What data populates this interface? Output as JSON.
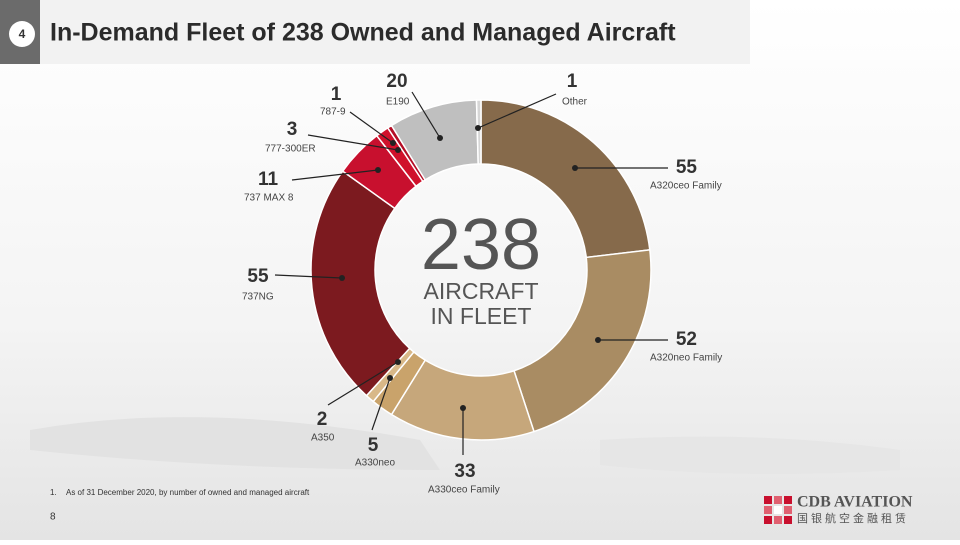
{
  "page_number": "4",
  "title": "In-Demand Fleet of 238 Owned and Managed Aircraft",
  "chart_data": {
    "type": "donut",
    "categories": [
      "A320ceo Family",
      "A320neo Family",
      "A330ceo Family",
      "A330neo",
      "A350",
      "737NG",
      "737 MAX 8",
      "777-300ER",
      "787-9",
      "E190",
      "Other"
    ],
    "values": [
      55,
      52,
      33,
      5,
      2,
      55,
      11,
      3,
      1,
      20,
      1
    ],
    "colors": [
      "#866a4b",
      "#a98c63",
      "#c6a77b",
      "#c9a36b",
      "#d8b888",
      "#7c1a1f",
      "#c8102e",
      "#d0112b",
      "#b50e26",
      "#bfbfbf",
      "#d6d6d6"
    ],
    "center_value": 238,
    "center_label": [
      "AIRCRAFT",
      "IN FLEET"
    ]
  },
  "footnote": {
    "marker": "1.",
    "text": "As of 31 December 2020, by number of owned and managed aircraft"
  },
  "slide_number": "8",
  "logo": {
    "name": "CDB AVIATION",
    "subtitle": "国银航空金融租赁"
  }
}
